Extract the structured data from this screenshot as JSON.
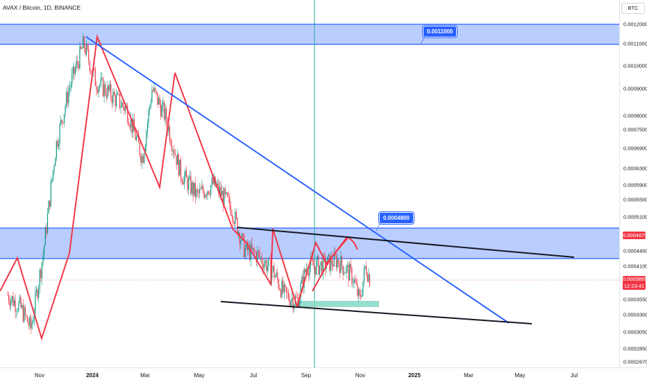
{
  "symbol": {
    "title": "AVAX / Bitcoin, 1D, BINANCE",
    "currency": "BTC"
  },
  "price_axis": {
    "labels": [
      "0.0012000",
      "0.0011000",
      "0.0010000",
      "0.0009000",
      "0.0008000",
      "0.0007500",
      "0.0006900",
      "0.0006300",
      "0.0005900",
      "0.0005500",
      "0.0005100",
      "0.0004675",
      "0.0004400",
      "0.0004100",
      "0.0003859",
      "12:23:41",
      "0.0003550",
      "0.0003300",
      "0.0003050",
      "0.0002850",
      "0.0002670"
    ]
  },
  "time_axis": {
    "labels": [
      "Nov",
      "2024",
      "Mar",
      "May",
      "Jul",
      "Sep",
      "Nov",
      "2025",
      "Mar",
      "May",
      "Jul"
    ]
  },
  "annotations": {
    "upper_zone_price": "0.0011000",
    "lower_zone_price": "0.0004800"
  },
  "last_price": {
    "value": "0.0003859",
    "countdown": "12:23:41",
    "marked_level": "0.0004675"
  },
  "colors": {
    "zone_fill": "#2962ff",
    "trendline_blue": "#2962ff",
    "trendline_black": "#131722",
    "zigzag": "#f23645",
    "candle_up": "#089981",
    "candle_down": "#f23645",
    "vertical_marker": "#22ab94",
    "accumulation_box": "#7ed6c2"
  },
  "chart_data": {
    "type": "candlestick",
    "title": "AVAX / Bitcoin, 1D, BINANCE",
    "y_scale": "log",
    "ylim": [
      0.000267,
      0.0012
    ],
    "x_range": [
      "2023-10",
      "2025-07"
    ],
    "x_ticks": [
      "Nov",
      "2024",
      "Mar",
      "May",
      "Jul",
      "Sep",
      "Nov",
      "2025",
      "Mar",
      "May",
      "Jul"
    ],
    "y_ticks": [
      0.0012,
      0.0011,
      0.001,
      0.0009,
      0.0008,
      0.00075,
      0.00069,
      0.00063,
      0.00059,
      0.00055,
      0.00051,
      0.00044,
      0.00041,
      0.000355,
      0.00033,
      0.000305,
      0.000285,
      0.000267
    ],
    "price_path": [
      [
        "2023-09-25",
        0.00036
      ],
      [
        "2023-10-10",
        0.00034
      ],
      [
        "2023-10-22",
        0.00031
      ],
      [
        "2023-11-05",
        0.00043
      ],
      [
        "2023-11-20",
        0.0007
      ],
      [
        "2023-12-05",
        0.0009
      ],
      [
        "2023-12-22",
        0.0011
      ],
      [
        "2024-01-05",
        0.00093
      ],
      [
        "2024-01-22",
        0.00088
      ],
      [
        "2024-02-10",
        0.00082
      ],
      [
        "2024-02-28",
        0.00066
      ],
      [
        "2024-03-10",
        0.0009
      ],
      [
        "2024-03-25",
        0.0008
      ],
      [
        "2024-04-12",
        0.00062
      ],
      [
        "2024-05-01",
        0.00056
      ],
      [
        "2024-05-20",
        0.00059
      ],
      [
        "2024-06-10",
        0.00053
      ],
      [
        "2024-06-25",
        0.00044
      ],
      [
        "2024-07-10",
        0.00043
      ],
      [
        "2024-07-28",
        0.0004
      ],
      [
        "2024-08-10",
        0.00036
      ],
      [
        "2024-08-25",
        0.00035
      ],
      [
        "2024-09-05",
        0.00041
      ],
      [
        "2024-09-22",
        0.00041
      ],
      [
        "2024-10-10",
        0.00042
      ],
      [
        "2024-10-28",
        0.00039
      ],
      [
        "2024-11-05",
        0.00035
      ],
      [
        "2024-11-12",
        0.00041
      ],
      [
        "2024-11-17",
        0.000386
      ]
    ],
    "last_price": 0.0003859,
    "zones": [
      {
        "from": 0.0011,
        "to": 0.0012,
        "label": "0.0011000"
      },
      {
        "from": 0.00042,
        "to": 0.000484,
        "label": "0.0004800"
      }
    ]
  }
}
